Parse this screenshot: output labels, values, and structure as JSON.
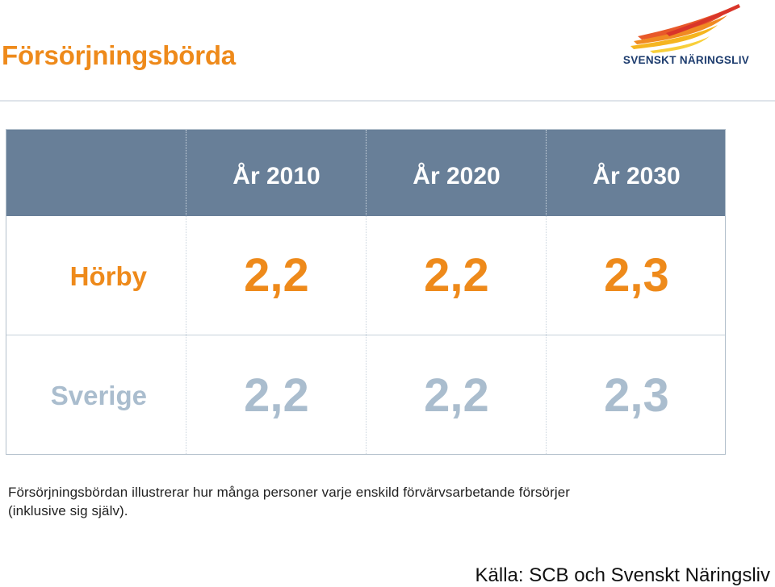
{
  "header": {
    "title": "Försörjningsbörda",
    "logo_text": "SVENSKT NÄRINGSLIV"
  },
  "table": {
    "columns": [
      "År 2010",
      "År 2020",
      "År 2030"
    ],
    "rows": [
      {
        "label": "Hörby",
        "values": [
          "2,2",
          "2,2",
          "2,3"
        ]
      },
      {
        "label": "Sverige",
        "values": [
          "2,2",
          "2,2",
          "2,3"
        ]
      }
    ]
  },
  "footer": {
    "note_line1": "Försörjningsbördan illustrerar hur många personer varje enskild förvärvsarbetande försörjer",
    "note_line2": "(inklusive sig själv).",
    "source": "Källa: SCB och Svenskt Näringsliv"
  },
  "colors": {
    "accent_orange": "#ee8a1b",
    "header_blue": "#687f98",
    "muted_blue": "#aabdce",
    "logo_navy": "#1d3c6e"
  }
}
